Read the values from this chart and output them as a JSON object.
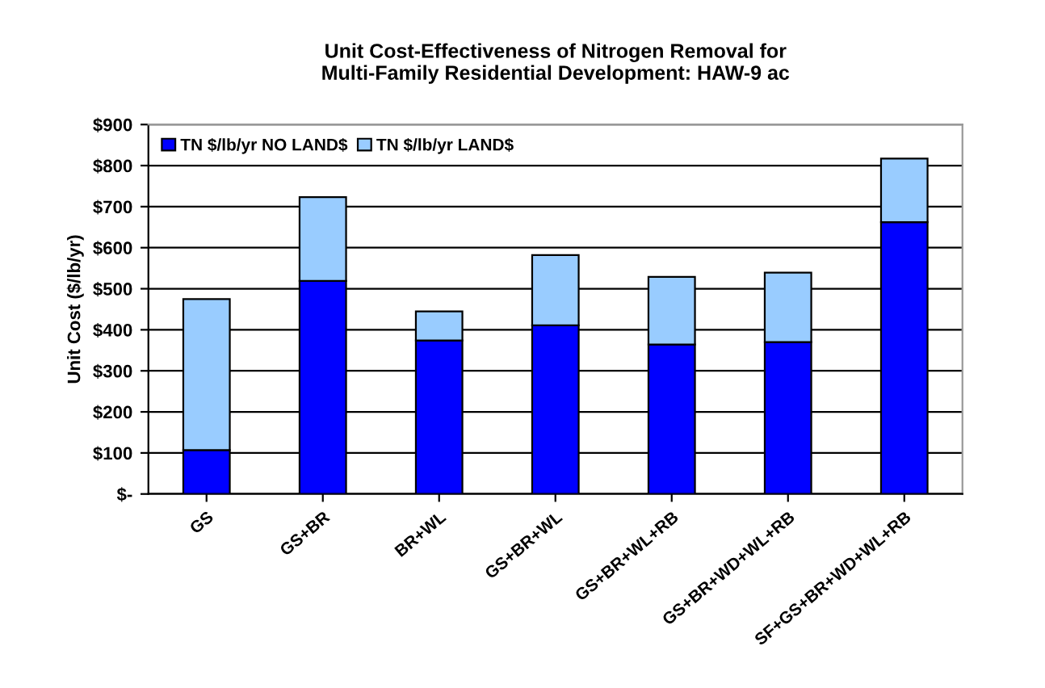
{
  "chart_data": {
    "type": "bar",
    "stacked": true,
    "title": "Unit Cost-Effectiveness of Nitrogen Removal for\nMulti-Family Residential Development: HAW-9 ac",
    "ylabel": "Unit Cost ($/lb/yr)",
    "categories": [
      "GS",
      "GS+BR",
      "BR+WL",
      "GS+BR+WL",
      "GS+BR+WL+RB",
      "GS+BR+WD+WL+RB",
      "SF+GS+BR+WD+WL+RB"
    ],
    "series": [
      {
        "name": "TN $/lb/yr NO LAND$",
        "color": "#0000ff",
        "values": [
          107,
          519,
          374,
          411,
          364,
          370,
          662
        ]
      },
      {
        "name": "TN $/lb/yr LAND$",
        "color": "#99ccff",
        "values": [
          368,
          204,
          71,
          171,
          165,
          169,
          155
        ]
      }
    ],
    "ylim": [
      0,
      900
    ],
    "yticks": [
      {
        "value": 0,
        "label": "$-"
      },
      {
        "value": 100,
        "label": "$100"
      },
      {
        "value": 200,
        "label": "$200"
      },
      {
        "value": 300,
        "label": "$300"
      },
      {
        "value": 400,
        "label": "$400"
      },
      {
        "value": 500,
        "label": "$500"
      },
      {
        "value": 600,
        "label": "$600"
      },
      {
        "value": 700,
        "label": "$700"
      },
      {
        "value": 800,
        "label": "$800"
      },
      {
        "value": 900,
        "label": "$900"
      }
    ],
    "grid": "y",
    "legend": "top left"
  }
}
